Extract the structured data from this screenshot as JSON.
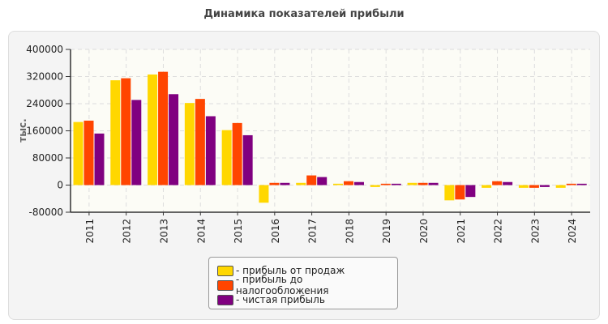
{
  "chart_data": {
    "type": "bar",
    "title": "Динамика показателей прибыли",
    "ylabel": "тыс.",
    "xlabel": "",
    "ylim": [
      -80000,
      400000
    ],
    "yticks": [
      "-80000",
      "0",
      "80000",
      "160000",
      "240000",
      "320000",
      "400000"
    ],
    "grid": true,
    "legend_position": "bottom",
    "categories": [
      "2011",
      "2012",
      "2013",
      "2014",
      "2015",
      "2016",
      "2017",
      "2018",
      "2019",
      "2020",
      "2021",
      "2022",
      "2023",
      "2024"
    ],
    "series": [
      {
        "name": "- прибыль от продаж",
        "color": "#ffd700",
        "values": [
          186000,
          309000,
          326000,
          242000,
          162000,
          -52000,
          6500,
          4000,
          -5700,
          6500,
          -45000,
          -8000,
          -8000,
          -8000
        ]
      },
      {
        "name": "- прибыль до налогообложения",
        "color": "#ff4500",
        "values": [
          190000,
          315000,
          334000,
          254000,
          183000,
          6500,
          28500,
          11400,
          4000,
          6500,
          -42400,
          11400,
          -8000,
          4000
        ]
      },
      {
        "name": "- чистая прибыль",
        "color": "#800080",
        "values": [
          152000,
          251000,
          268000,
          203000,
          147000,
          6500,
          23700,
          9000,
          4000,
          6500,
          -35000,
          9000,
          -5700,
          4000
        ]
      }
    ]
  }
}
